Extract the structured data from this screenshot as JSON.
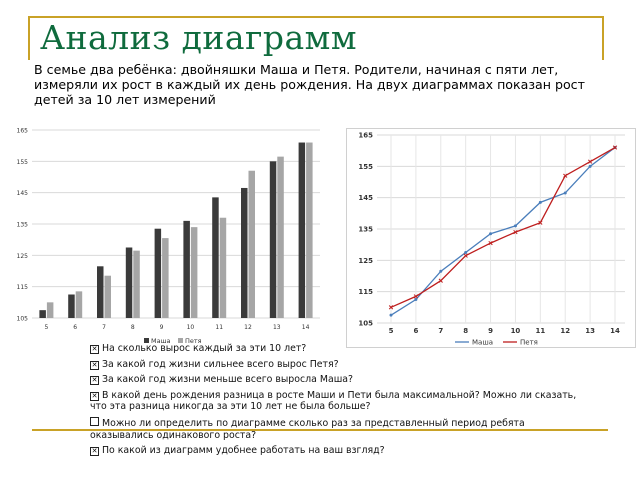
{
  "slide": {
    "title": "Анализ диаграмм",
    "intro": "В семье два ребёнка: двойняшки Маша и Петя. Родители, начиная с пяти лет, измеряли их рост в каждый их день рождения. На двух диаграммах показан рост детей за 10 лет измерений",
    "accent_color": "#c9a227",
    "title_color": "#0f6b3d"
  },
  "chart_data": [
    {
      "type": "bar",
      "categories": [
        "5",
        "6",
        "7",
        "8",
        "9",
        "10",
        "11",
        "12",
        "13",
        "14"
      ],
      "y_ticks": [
        "105",
        "115",
        "125",
        "135",
        "145",
        "155",
        "165"
      ],
      "ylim": [
        105,
        165
      ],
      "grid": true,
      "legend": "bottom",
      "series": [
        {
          "name": "Маша",
          "color": "#3a3a3a",
          "values": [
            107.5,
            112.5,
            121.5,
            127.5,
            133.5,
            136,
            143.5,
            146.5,
            155,
            161
          ]
        },
        {
          "name": "Петя",
          "color": "#a6a6a6",
          "values": [
            110,
            113.5,
            118.5,
            126.5,
            130.5,
            134,
            137,
            152,
            156.5,
            161
          ]
        }
      ]
    },
    {
      "type": "line",
      "categories": [
        "5",
        "6",
        "7",
        "8",
        "9",
        "10",
        "11",
        "12",
        "13",
        "14"
      ],
      "y_ticks": [
        "105",
        "115",
        "125",
        "135",
        "145",
        "155",
        "165"
      ],
      "ylim": [
        105,
        165
      ],
      "grid": true,
      "legend": "bottom",
      "series": [
        {
          "name": "Маша",
          "color": "#4a7ebb",
          "values": [
            107.5,
            112.5,
            121.5,
            127.5,
            133.5,
            136,
            143.5,
            146.5,
            155,
            161
          ]
        },
        {
          "name": "Петя",
          "color": "#be1e1e",
          "values": [
            110,
            113.5,
            118.5,
            126.5,
            130.5,
            134,
            137,
            152,
            156.5,
            161
          ]
        }
      ]
    }
  ],
  "questions": [
    {
      "box": "✕",
      "text": "На сколько вырос каждый за эти 10 лет?"
    },
    {
      "box": "✕",
      "text": "За какой год жизни сильнее всего вырос Петя?"
    },
    {
      "box": "✕",
      "text": "За какой год жизни меньше всего выросла Маша?"
    },
    {
      "box": "✕",
      "text": "В какой день рождения разница в росте Маши и Пети была максимальной? Можно ли сказать, что эта разница никогда за эти 10 лет не была больше?"
    },
    {
      "box": "",
      "text": "Можно ли определить по диаграмме сколько раз за представленный период ребята оказывались одинакового роста?"
    },
    {
      "box": "✕",
      "text": "По какой из диаграмм удобнее работать на ваш взгляд?"
    }
  ]
}
